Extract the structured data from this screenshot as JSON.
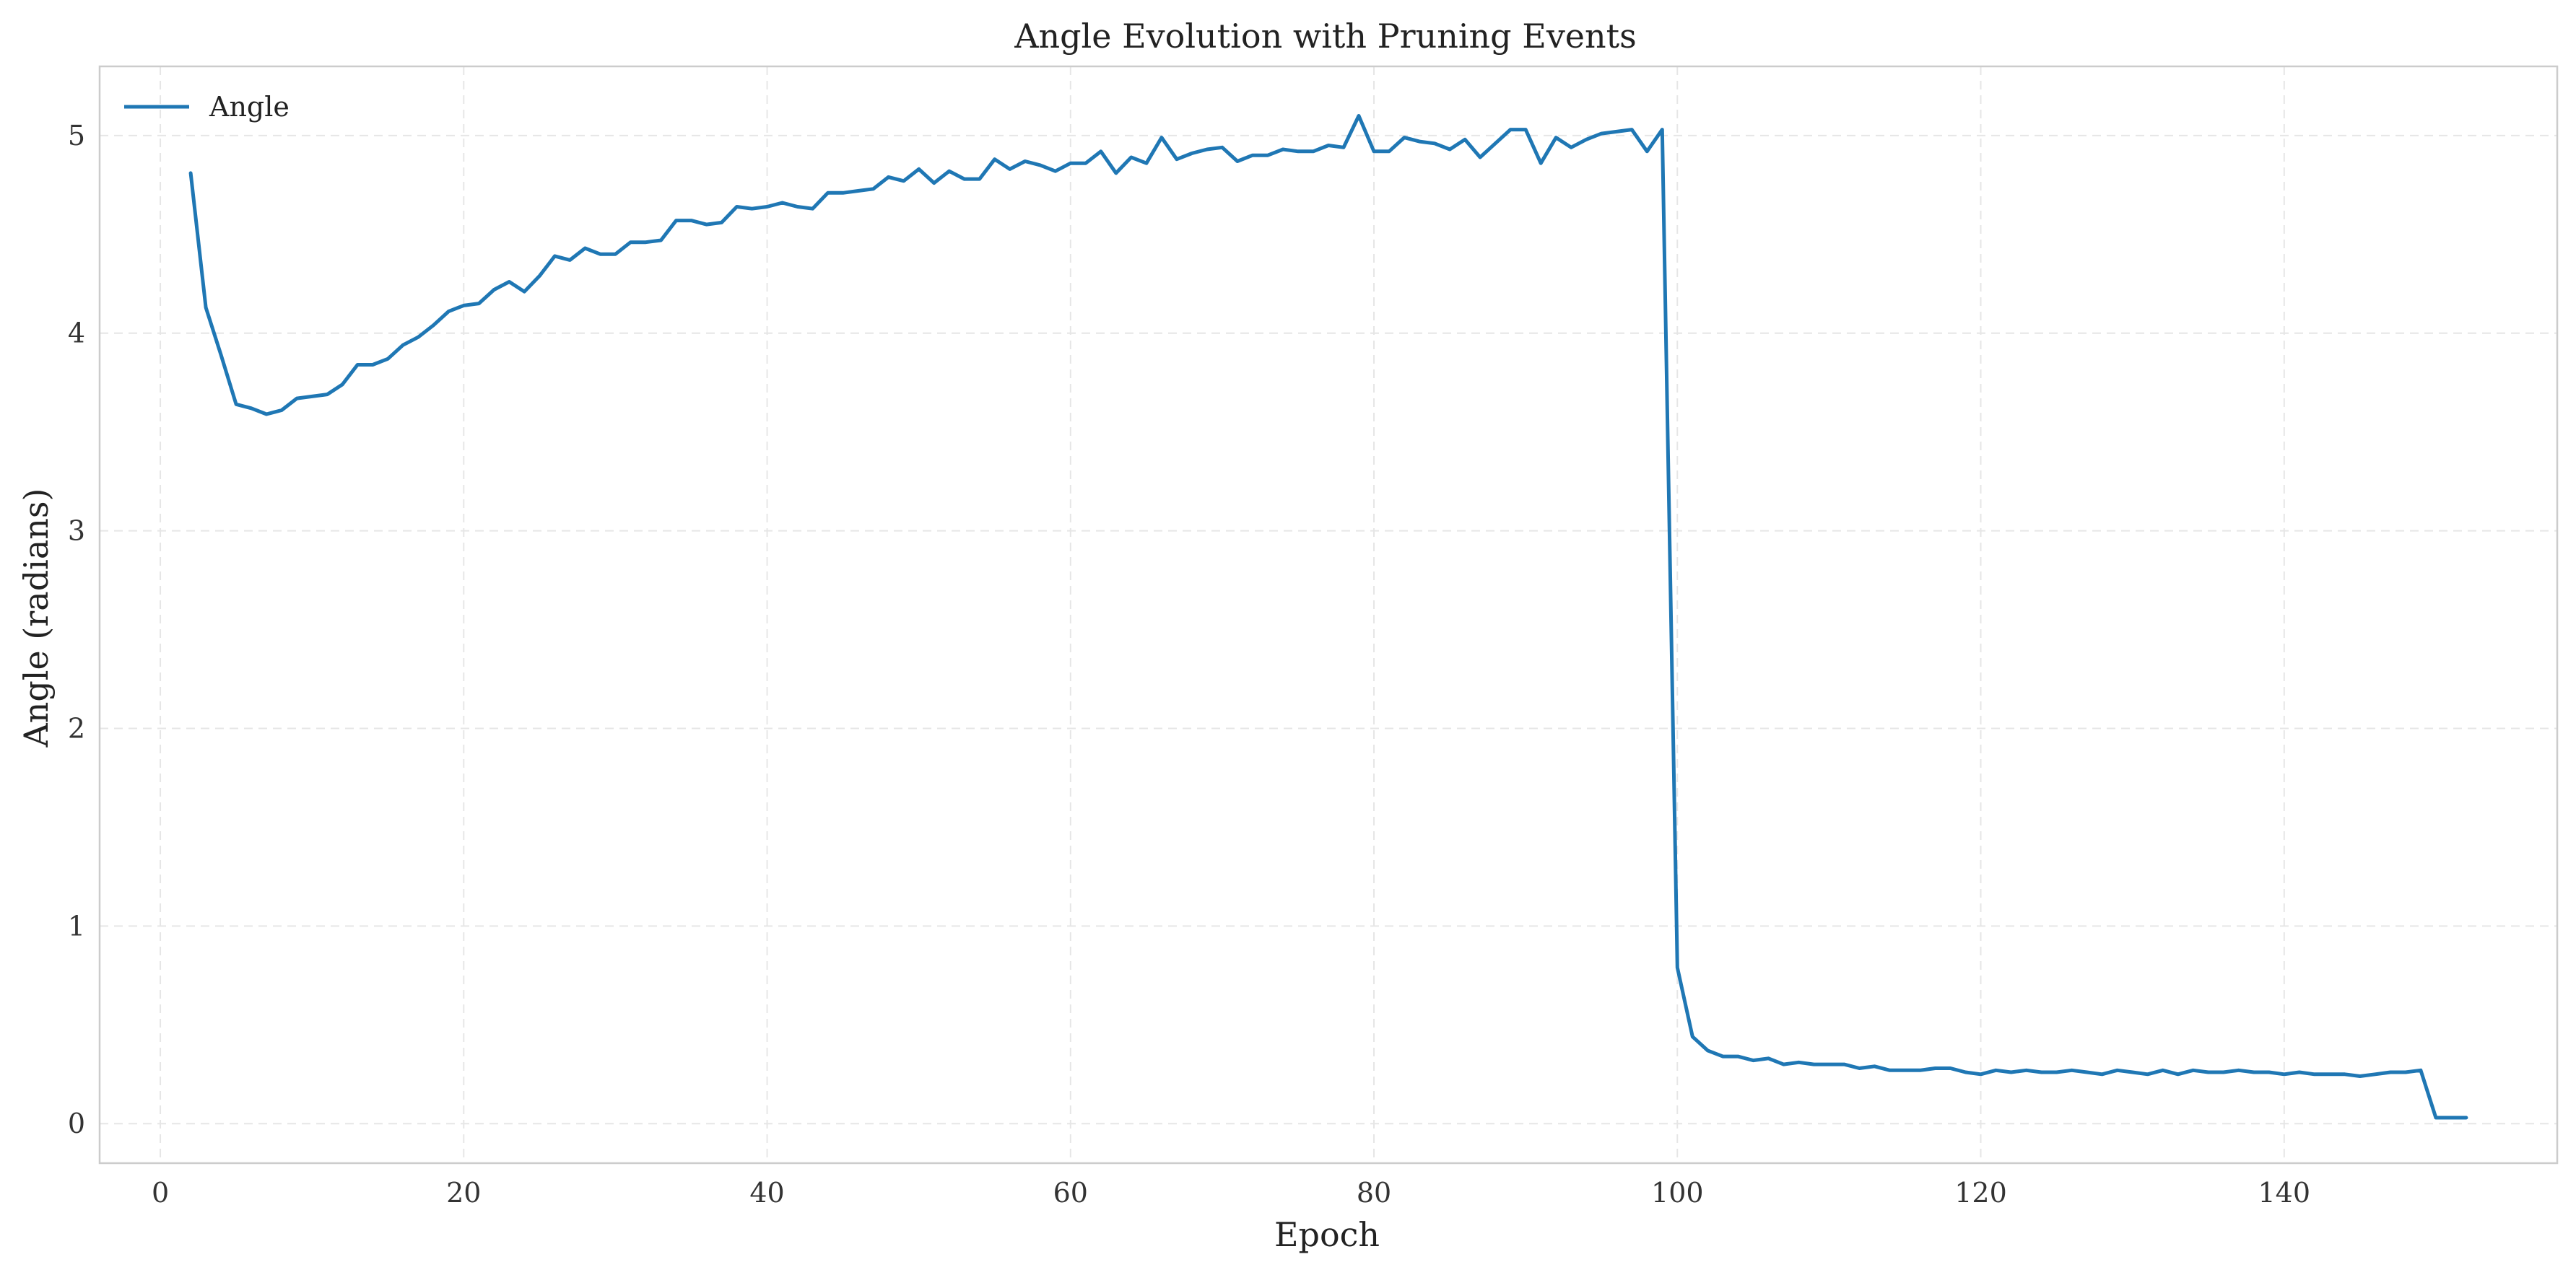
{
  "chart_data": {
    "type": "line",
    "title": "Angle Evolution with Pruning Events",
    "xlabel": "Epoch",
    "ylabel": "Angle (radians)",
    "xlim": [
      -4,
      158
    ],
    "ylim": [
      -0.2,
      5.35
    ],
    "xticks": [
      0,
      20,
      40,
      60,
      80,
      100,
      120,
      140
    ],
    "yticks": [
      0,
      1,
      2,
      3,
      4,
      5
    ],
    "grid": true,
    "legend_position": "top-left",
    "colors": {
      "series": "#1f77b4",
      "grid": "#e6e6e6",
      "frame": "#cccccc"
    },
    "series": [
      {
        "name": "Angle",
        "x": [
          2,
          3,
          4,
          5,
          6,
          7,
          8,
          9,
          10,
          11,
          12,
          13,
          14,
          15,
          16,
          17,
          18,
          19,
          20,
          21,
          22,
          23,
          24,
          25,
          26,
          27,
          28,
          29,
          30,
          31,
          32,
          33,
          34,
          35,
          36,
          37,
          38,
          39,
          40,
          41,
          42,
          43,
          44,
          45,
          46,
          47,
          48,
          49,
          50,
          51,
          52,
          53,
          54,
          55,
          56,
          57,
          58,
          59,
          60,
          61,
          62,
          63,
          64,
          65,
          66,
          67,
          68,
          69,
          70,
          71,
          72,
          73,
          74,
          75,
          76,
          77,
          78,
          79,
          80,
          81,
          82,
          83,
          84,
          85,
          86,
          87,
          88,
          89,
          90,
          91,
          92,
          93,
          94,
          95,
          96,
          97,
          98,
          99,
          100,
          101,
          102,
          103,
          104,
          105,
          106,
          107,
          108,
          109,
          110,
          111,
          112,
          113,
          114,
          115,
          116,
          117,
          118,
          119,
          120,
          121,
          122,
          123,
          124,
          125,
          126,
          127,
          128,
          129,
          130,
          131,
          132,
          133,
          134,
          135,
          136,
          137,
          138,
          139,
          140,
          141,
          142,
          143,
          144,
          145,
          146,
          147,
          148,
          149,
          150,
          151,
          152
        ],
        "values": [
          4.81,
          4.13,
          3.89,
          3.64,
          3.62,
          3.59,
          3.61,
          3.67,
          3.68,
          3.69,
          3.74,
          3.84,
          3.84,
          3.87,
          3.94,
          3.98,
          4.04,
          4.11,
          4.14,
          4.15,
          4.22,
          4.26,
          4.21,
          4.29,
          4.39,
          4.37,
          4.43,
          4.4,
          4.4,
          4.46,
          4.46,
          4.47,
          4.57,
          4.57,
          4.55,
          4.56,
          4.64,
          4.63,
          4.64,
          4.66,
          4.64,
          4.63,
          4.71,
          4.71,
          4.72,
          4.73,
          4.79,
          4.77,
          4.83,
          4.76,
          4.82,
          4.78,
          4.78,
          4.88,
          4.83,
          4.87,
          4.85,
          4.82,
          4.86,
          4.86,
          4.92,
          4.81,
          4.89,
          4.86,
          4.99,
          4.88,
          4.91,
          4.93,
          4.94,
          4.87,
          4.9,
          4.9,
          4.93,
          4.92,
          4.92,
          4.95,
          4.94,
          5.1,
          4.92,
          4.92,
          4.99,
          4.97,
          4.96,
          4.93,
          4.98,
          4.89,
          4.96,
          5.03,
          5.03,
          4.86,
          4.99,
          4.94,
          4.98,
          5.01,
          5.02,
          5.03,
          4.92,
          5.03,
          0.79,
          0.44,
          0.37,
          0.34,
          0.34,
          0.32,
          0.33,
          0.3,
          0.31,
          0.3,
          0.3,
          0.3,
          0.28,
          0.29,
          0.27,
          0.27,
          0.27,
          0.28,
          0.28,
          0.26,
          0.25,
          0.27,
          0.26,
          0.27,
          0.26,
          0.26,
          0.27,
          0.26,
          0.25,
          0.27,
          0.26,
          0.25,
          0.27,
          0.25,
          0.27,
          0.26,
          0.26,
          0.27,
          0.26,
          0.26,
          0.25,
          0.26,
          0.25,
          0.25,
          0.25,
          0.24,
          0.25,
          0.26,
          0.26,
          0.27,
          0.03,
          0.03,
          0.03
        ]
      }
    ]
  }
}
